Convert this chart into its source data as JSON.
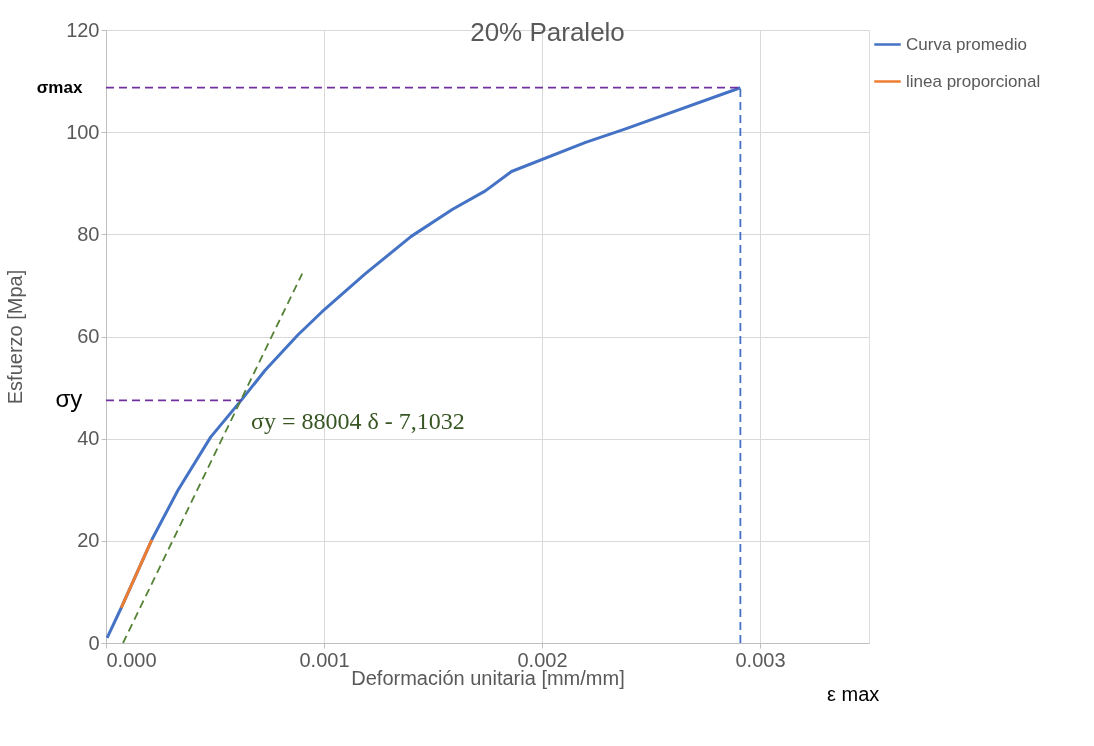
{
  "chart_data": {
    "type": "line",
    "title": "20% Paralelo",
    "xlabel": "Deformación unitaria [mm/mm]",
    "ylabel": "Esfuerzo [Mpa]",
    "xlim": [
      0,
      0.0035
    ],
    "ylim": [
      0,
      120
    ],
    "xticks": [
      {
        "value": 0,
        "label": "0.000"
      },
      {
        "value": 0.001,
        "label": "0.001"
      },
      {
        "value": 0.002,
        "label": "0.002"
      },
      {
        "value": 0.003,
        "label": "0.003"
      }
    ],
    "yticks": [
      0,
      20,
      40,
      60,
      80,
      100,
      120
    ],
    "grid": true,
    "legend": "right",
    "marker": "none",
    "line_style": "solid",
    "series": [
      {
        "name": "Curva promedio",
        "color": "#4472c4",
        "x": [
          5e-06,
          7e-05,
          0.00021,
          0.00033,
          0.00048,
          0.00062,
          0.00073,
          0.00088,
          0.00099,
          0.00119,
          0.0014,
          0.00159,
          0.00174,
          0.00186,
          0.0022,
          0.00238,
          0.00291
        ],
        "values": [
          1,
          6.9,
          20.2,
          29.9,
          40.3,
          47.5,
          53.4,
          60.3,
          64.8,
          72.3,
          79.6,
          84.9,
          88.5,
          92.3,
          98,
          100.6,
          108.7
        ]
      },
      {
        "name": "linea proporcional",
        "color": "#ed7d31",
        "x": [
          7e-05,
          0.00021
        ],
        "values": [
          6.9,
          20.2
        ]
      },
      {
        "color": "#548235",
        "line_style": "dashed",
        "x": [
          7.8e-05,
          0.0009
        ],
        "values": [
          0,
          72.3
        ]
      },
      {
        "color": "#7030a0",
        "line_style": "dashed",
        "x": [
          0,
          0.00291
        ],
        "values": [
          108.7,
          108.7
        ]
      },
      {
        "color": "#7030a0",
        "line_style": "dashed",
        "x": [
          0,
          0.00062
        ],
        "values": [
          47.5,
          47.5
        ]
      },
      {
        "color": "#4472c4",
        "line_style": "dashed",
        "x": [
          0.00291,
          0.00291
        ],
        "values": [
          0,
          108.7
        ]
      }
    ],
    "annotations": [
      "σmax",
      "σy",
      "σy = 88004 δ - 7,1032",
      "ε max"
    ]
  }
}
